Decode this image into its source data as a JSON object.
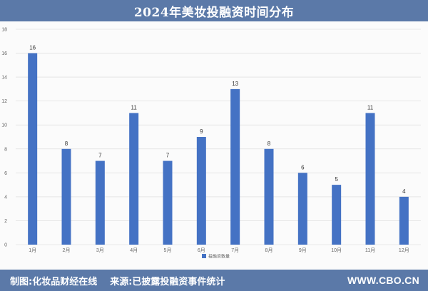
{
  "title": "2024年美妆投融资时间分布",
  "footer": {
    "source_left": "制图:化妆品财经在线",
    "source_right": "来源:已披露投融资事件统计",
    "site": "WWW.CBO.CN"
  },
  "chart_data": {
    "type": "bar",
    "categories": [
      "1月",
      "2月",
      "3月",
      "4月",
      "5月",
      "6月",
      "7月",
      "8月",
      "9月",
      "10月",
      "11月",
      "12月"
    ],
    "series": [
      {
        "name": "投融资数量",
        "values": [
          16,
          8,
          7,
          11,
          7,
          9,
          13,
          8,
          6,
          5,
          11,
          4
        ]
      }
    ],
    "title": "2024年美妆投融资时间分布",
    "xlabel": "",
    "ylabel": "",
    "ylim": [
      0,
      18
    ],
    "yticks": [
      0,
      2,
      4,
      6,
      8,
      10,
      12,
      14,
      16,
      18
    ],
    "grid": true,
    "legend": "bottom-center",
    "colors": {
      "bar": "#4472c4",
      "grid": "#d9d9d9",
      "header": "#5b79a8"
    }
  }
}
